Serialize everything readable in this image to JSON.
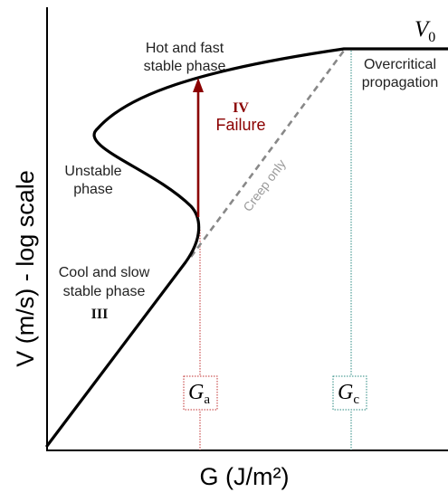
{
  "axes": {
    "ylabel": "V (m/s) - log scale",
    "xlabel": "G (J/m²)"
  },
  "labels": {
    "v0_base": "V",
    "v0_sub": "0",
    "hot_line1": "Hot and fast",
    "hot_line2": "stable phase",
    "overcritical_line1": "Overcritical",
    "overcritical_line2": "propagation",
    "unstable_line1": "Unstable",
    "unstable_line2": "phase",
    "cool_line1": "Cool and slow",
    "cool_line2": "stable phase",
    "phase_iii": "III",
    "phase_iv": "IV",
    "failure": "Failure",
    "creep_only": "Creep only",
    "ga_base": "G",
    "ga_sub": "a",
    "gc_base": "G",
    "gc_sub": "c"
  },
  "colors": {
    "curve": "#000000",
    "failure_arrow": "#8b0000",
    "creep_line": "#888888",
    "ga_line": "#c03030",
    "gc_line": "#2a8a80"
  }
}
